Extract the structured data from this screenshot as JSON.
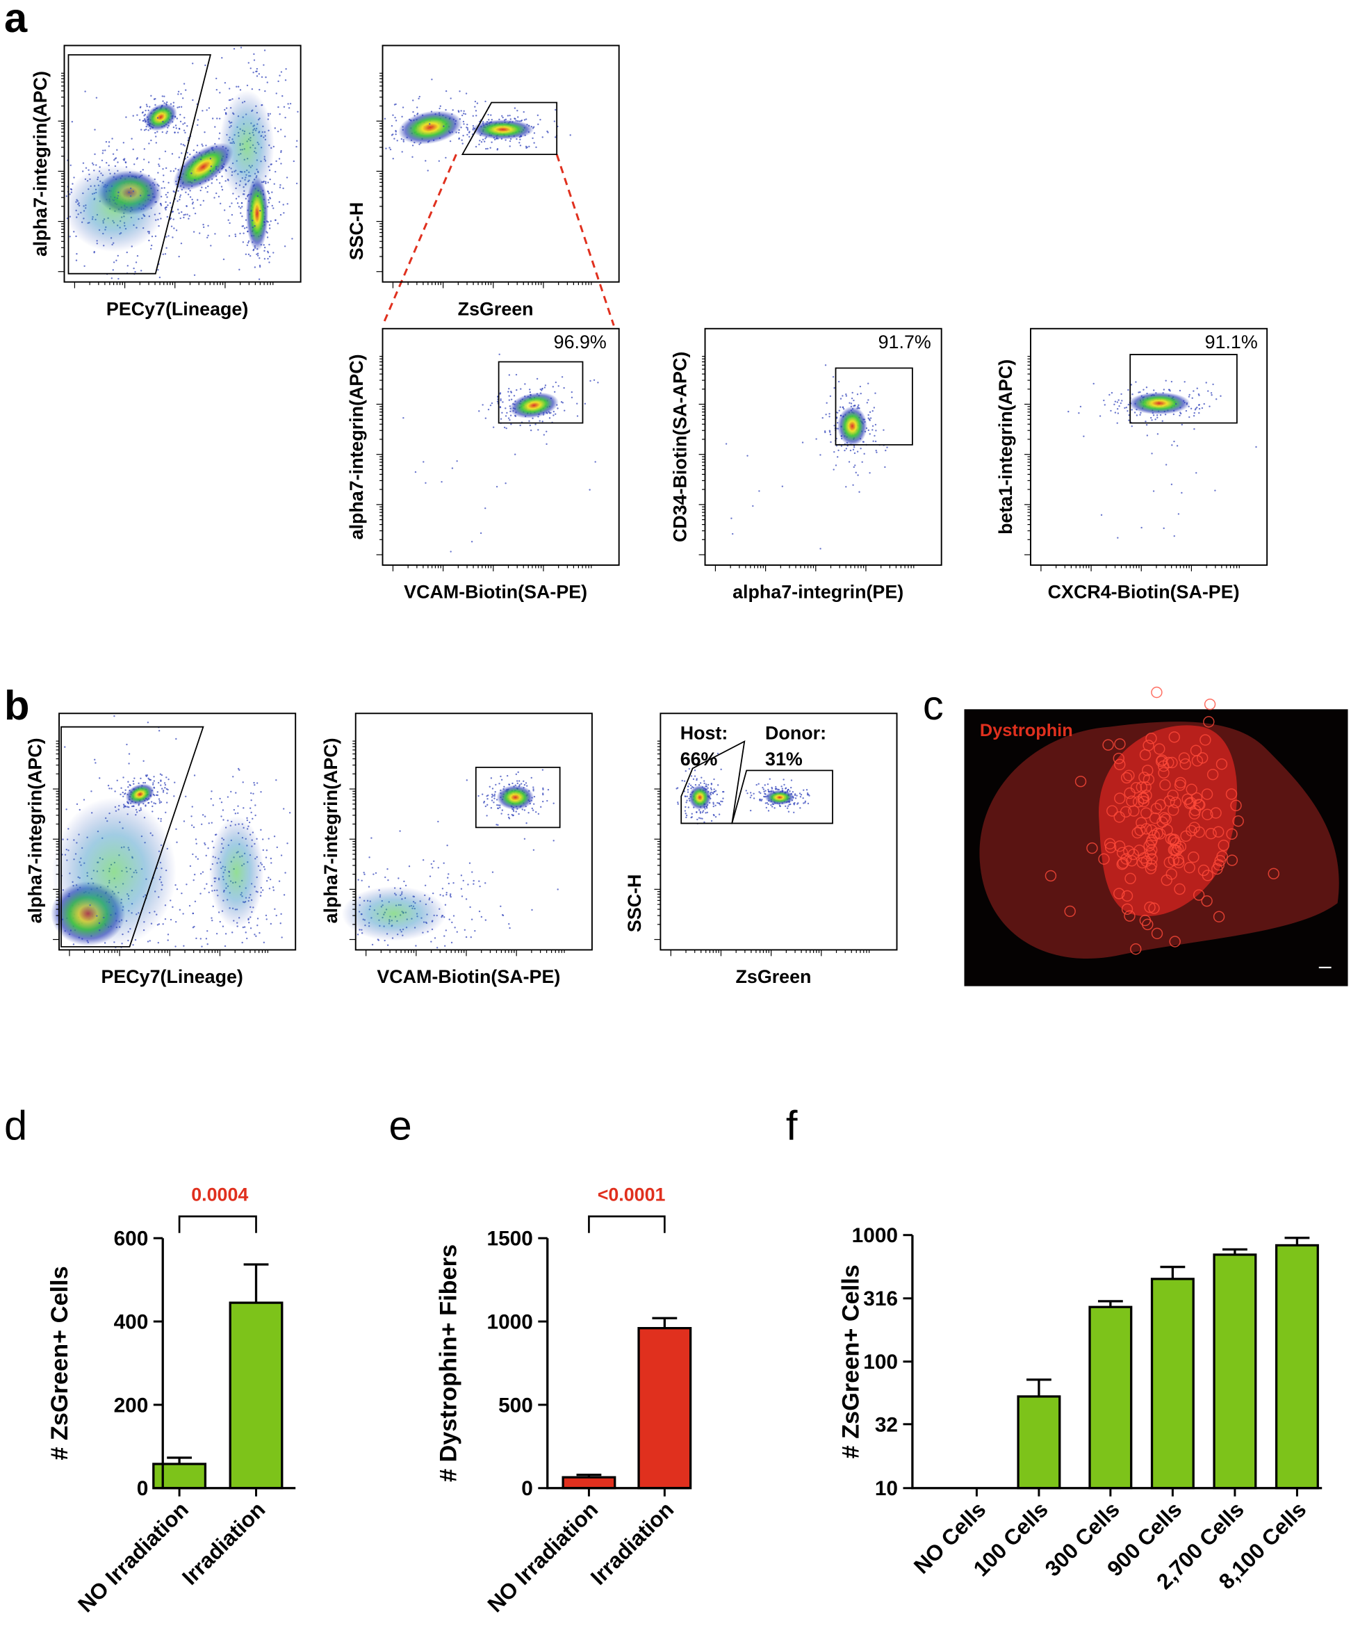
{
  "panel_labels": [
    "a",
    "b",
    "c",
    "d",
    "e",
    "f"
  ],
  "flow_plots": [
    {
      "x_label": "PECy7(Lineage)",
      "y_label": "alpha7-integrin(APC)"
    },
    {
      "x_label": "ZsGreen",
      "y_label": "SSC-H"
    },
    {
      "x_label": "VCAM-Biotin(SA-PE)",
      "y_label": "alpha7-integrin(APC)",
      "gate_labels": [
        "96.9%"
      ]
    },
    {
      "x_label": "alpha7-integrin(PE)",
      "y_label": "CD34-Biotin(SA-APC)",
      "gate_labels": [
        "91.7%"
      ]
    },
    {
      "x_label": "CXCR4-Biotin(SA-PE)",
      "y_label": "beta1-integrin(APC)",
      "gate_labels": [
        "91.1%"
      ]
    },
    {
      "x_label": "PECy7(Lineage)",
      "y_label": "alpha7-integrin(APC)"
    },
    {
      "x_label": "VCAM-Biotin(SA-PE)",
      "y_label": "alpha7-integrin(APC)"
    },
    {
      "x_label": "ZsGreen",
      "y_label": "SSC-H",
      "gate_labels": [
        "Host:",
        "66%",
        "Donor:",
        "31%"
      ]
    }
  ],
  "image_c": {
    "label": "Dystrophin"
  },
  "chart_data": [
    {
      "type": "bar",
      "y_label": "# ZsGreen+ Cells",
      "annotation": "0.0004",
      "categories": [
        "NO Irradiation",
        "Irradiation"
      ],
      "values": [
        58,
        445
      ],
      "errors": [
        15,
        92
      ],
      "color": "#7dc31a",
      "ylim": [
        0,
        600
      ],
      "yticks": [
        0,
        200,
        400,
        600
      ]
    },
    {
      "type": "bar",
      "y_label": "# Dystrophin+ Fibers",
      "annotation": "<0.0001",
      "categories": [
        "NO Irradiation",
        "Irradiation"
      ],
      "values": [
        65,
        960
      ],
      "errors": [
        15,
        60
      ],
      "color": "#e0301e",
      "ylim": [
        0,
        1500
      ],
      "yticks": [
        0,
        500,
        1000,
        1500
      ]
    },
    {
      "type": "bar",
      "y_label": "# ZsGreen+ Cells",
      "log_scale": true,
      "categories": [
        "NO Cells",
        "100 Cells",
        "300 Cells",
        "900 Cells",
        "2,700 Cells",
        "8,100 Cells"
      ],
      "values": [
        null,
        53,
        270,
        450,
        700,
        830
      ],
      "errors": [
        null,
        19,
        30,
        110,
        70,
        120
      ],
      "color": "#7dc31a",
      "ylim": [
        10,
        1000
      ],
      "yticks": [
        10,
        32,
        100,
        316,
        1000
      ]
    }
  ]
}
